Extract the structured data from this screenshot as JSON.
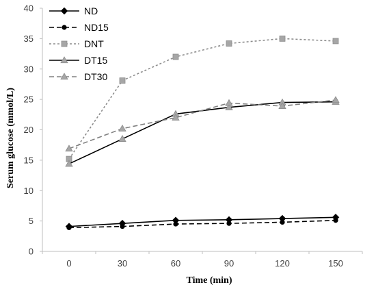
{
  "chart_data": {
    "type": "line",
    "title": "",
    "xlabel": "Time (min)",
    "ylabel": "Serum glucose (mmol/L)",
    "x": [
      0,
      30,
      60,
      90,
      120,
      150
    ],
    "x_tick_labels": [
      "0",
      "30",
      "60",
      "90",
      "120",
      "150"
    ],
    "ylim": [
      0,
      40
    ],
    "y_ticks": [
      0,
      5,
      10,
      15,
      20,
      25,
      30,
      35,
      40
    ],
    "y_tick_labels": [
      "0",
      "5",
      "10",
      "15",
      "20",
      "25",
      "30",
      "35",
      "40"
    ],
    "grid": false,
    "legend_position": "top-left",
    "series": [
      {
        "name": "ND",
        "values": [
          4.1,
          4.6,
          5.1,
          5.2,
          5.4,
          5.6
        ],
        "color": "#000000",
        "line_style": "solid",
        "marker": "diamond"
      },
      {
        "name": "ND15",
        "values": [
          3.9,
          4.1,
          4.5,
          4.6,
          4.8,
          5.1
        ],
        "color": "#000000",
        "line_style": "dashed",
        "marker": "circle"
      },
      {
        "name": "DNT",
        "values": [
          15.2,
          28.1,
          32.0,
          34.2,
          35.0,
          34.6
        ],
        "color": "#8c8c8c",
        "line_style": "dotted",
        "marker": "square"
      },
      {
        "name": "DT15",
        "values": [
          14.4,
          18.5,
          22.6,
          23.7,
          24.5,
          24.6
        ],
        "color": "#000000",
        "line_style": "solid",
        "marker": "triangle"
      },
      {
        "name": "DT30",
        "values": [
          16.9,
          20.2,
          22.0,
          24.4,
          23.9,
          24.9
        ],
        "color": "#808080",
        "line_style": "dashed",
        "marker": "triangle"
      }
    ]
  }
}
